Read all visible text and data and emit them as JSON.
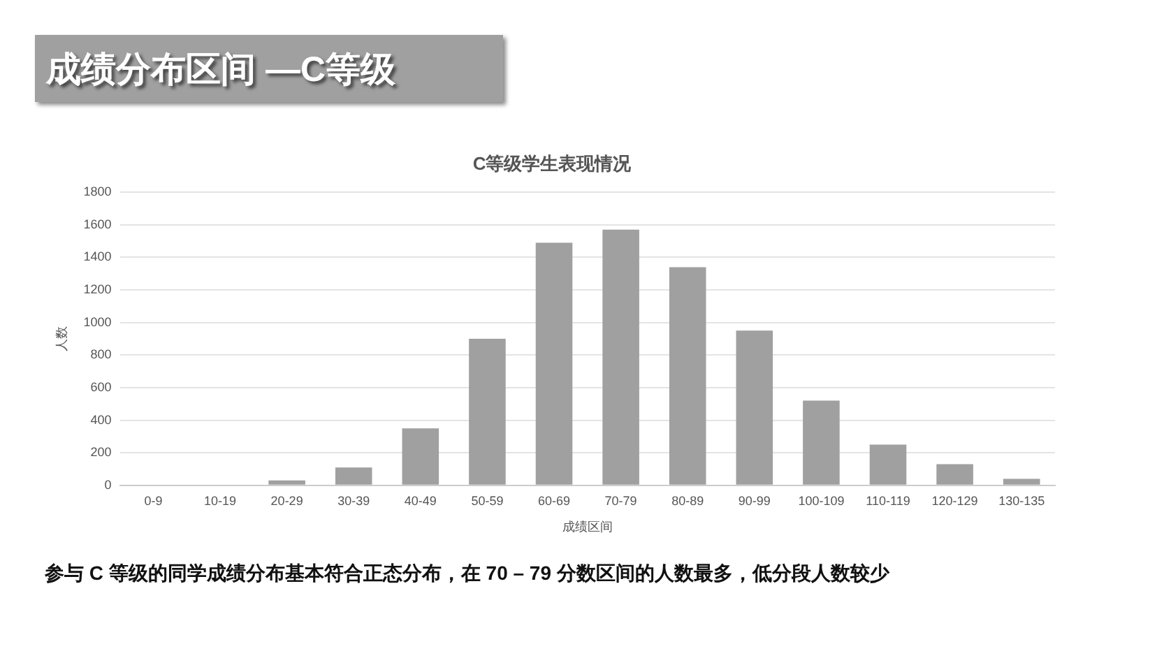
{
  "chart_data": {
    "type": "bar",
    "title": "成绩分布区间 —C等级",
    "subtitle": "C等级学生表现情况",
    "xlabel": "成绩区间",
    "ylabel": "人数",
    "categories": [
      "0-9",
      "10-19",
      "20-29",
      "30-39",
      "40-49",
      "50-59",
      "60-69",
      "70-79",
      "80-89",
      "90-99",
      "100-109",
      "110-119",
      "120-129",
      "130-135"
    ],
    "values": [
      0,
      0,
      30,
      110,
      350,
      900,
      1490,
      1570,
      1340,
      950,
      520,
      250,
      130,
      40
    ],
    "color": "#a0a0a0",
    "ylim": [
      0,
      1800
    ],
    "yticks": [
      0,
      200,
      400,
      600,
      800,
      1000,
      1200,
      1400,
      1600,
      1800
    ],
    "grid": "y",
    "legend": false,
    "annotations": [
      "参与 C 等级的同学成绩分布基本符合正态分布，在 70 – 79 分数区间的人数最多，低分段人数较少"
    ]
  }
}
